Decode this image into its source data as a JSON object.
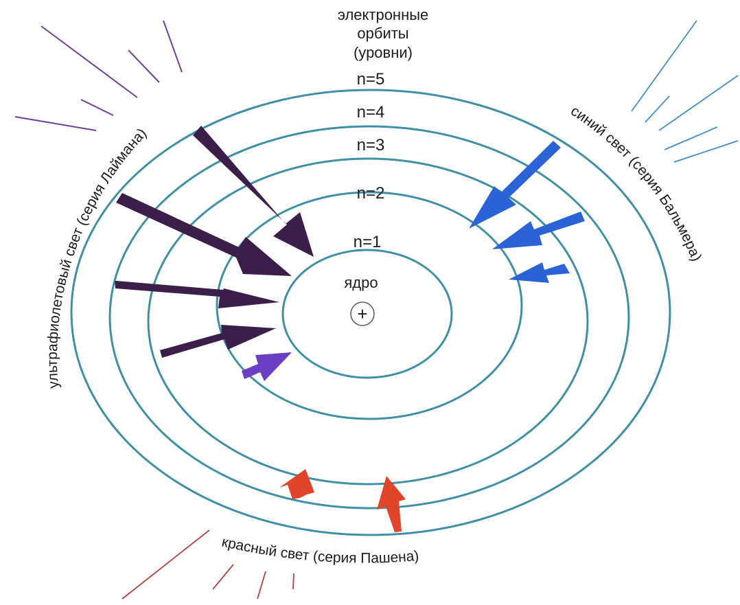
{
  "title_lines": [
    "электронные",
    "орбиты",
    "(уровни)"
  ],
  "levels": [
    "n=1",
    "n=2",
    "n=3",
    "n=4",
    "n=5"
  ],
  "nucleus": {
    "label": "ядро",
    "symbol": "+"
  },
  "series": {
    "lyman": "ультрафиолетовый свет (серия Лаймана)",
    "balmer": "синий свет (серия Бальмера)",
    "paschen": "красный свет (серия Пашена)"
  },
  "colors": {
    "orbit": "#3f8fa6",
    "lyman": "#3b1f4a",
    "lyman_light": "#6a3fc4",
    "balmer": "#2b63d6",
    "paschen": "#e0452a",
    "ray_violet": "#6b3fa0",
    "ray_blue": "#3f8fd0",
    "ray_red": "#b84040"
  },
  "transitions": {
    "lyman": [
      "5→1",
      "4→1",
      "3→1",
      "2→1"
    ],
    "balmer": [
      "5→2",
      "4→2",
      "3→2"
    ],
    "paschen": [
      "5→3",
      "4→3"
    ]
  }
}
